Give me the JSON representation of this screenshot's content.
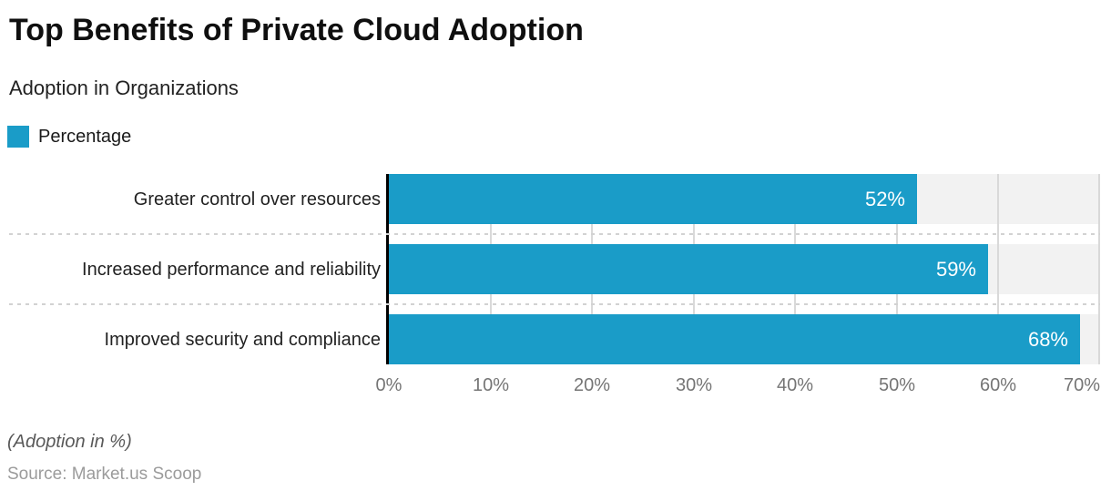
{
  "title": "Top Benefits of Private Cloud Adoption",
  "subtitle": "Adoption in Organizations",
  "legend": {
    "label": "Percentage",
    "swatch_color": "#1a9cc8"
  },
  "chart_data": {
    "type": "bar",
    "orientation": "horizontal",
    "title": "Top Benefits of Private Cloud Adoption",
    "subtitle": "Adoption in Organizations",
    "categories": [
      "Greater control over resources",
      "Increased performance and reliability",
      "Improved security and compliance"
    ],
    "values": [
      52,
      59,
      68
    ],
    "value_labels": [
      "52%",
      "59%",
      "68%"
    ],
    "xlim": [
      0,
      70
    ],
    "x_ticks": [
      "0%",
      "10%",
      "20%",
      "30%",
      "40%",
      "50%",
      "60%",
      "70%"
    ],
    "bar_color": "#1a9cc8",
    "band_color": "#f2f2f2",
    "gridline_color": "#d9d9d9",
    "grid": true,
    "legend_position": "top-left",
    "legend_entries": [
      "Percentage"
    ]
  },
  "footer": {
    "note": "(Adoption in %)",
    "source": "Source: Market.us Scoop"
  }
}
